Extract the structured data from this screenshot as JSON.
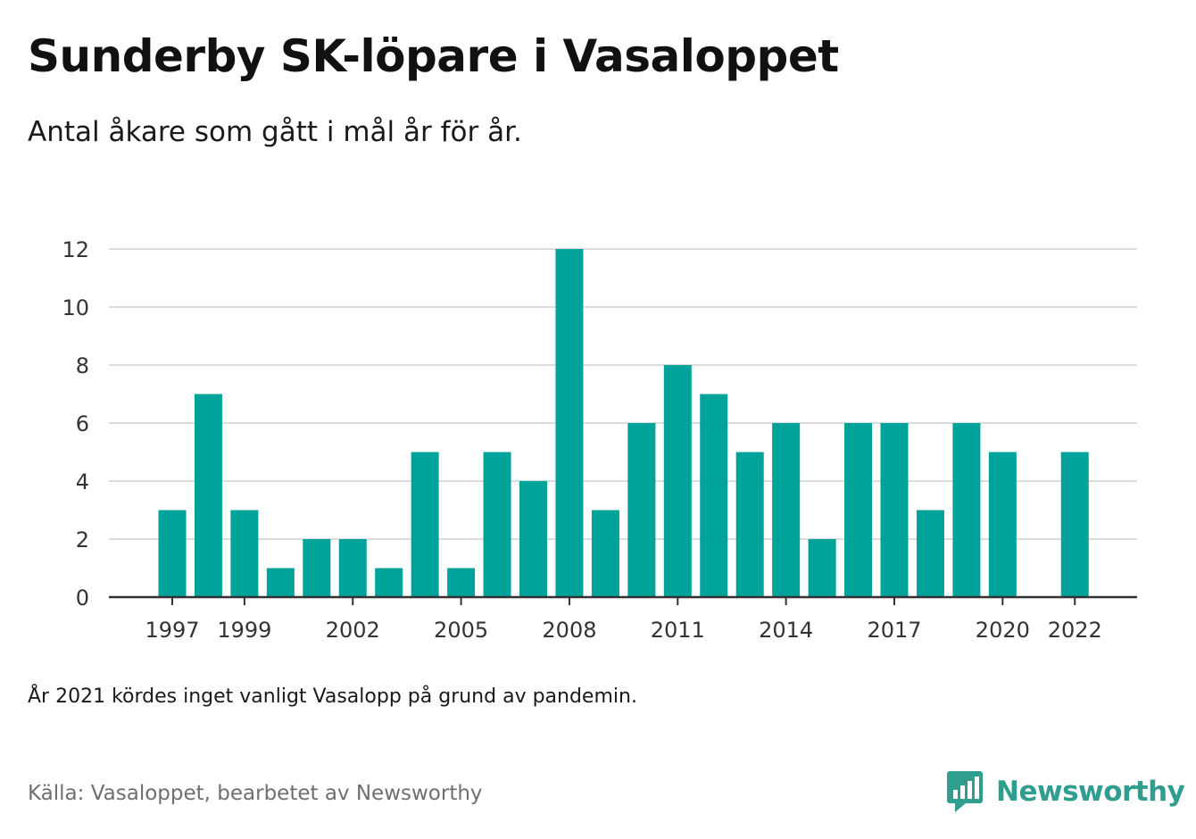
{
  "header": {
    "title": "Sunderby SK-löpare i Vasaloppet",
    "subtitle": "Antal åkare som gått i mål år för år."
  },
  "footer": {
    "note": "År 2021 kördes inget vanligt Vasalopp på grund av pandemin.",
    "source": "Källa: Vasaloppet, bearbetet av Newsworthy",
    "brand": "Newsworthy",
    "brand_icon": "newsworthy-logo-icon"
  },
  "colors": {
    "bar": "#00a39a",
    "grid": "#dcdcdc",
    "axis": "#333333",
    "brand": "#2f9e8f"
  },
  "chart_data": {
    "type": "bar",
    "title": "Sunderby SK-löpare i Vasaloppet",
    "subtitle": "Antal åkare som gått i mål år för år.",
    "xlabel": "",
    "ylabel": "",
    "categories": [
      1997,
      1998,
      1999,
      2000,
      2001,
      2002,
      2003,
      2004,
      2005,
      2006,
      2007,
      2008,
      2009,
      2010,
      2011,
      2012,
      2013,
      2014,
      2015,
      2016,
      2017,
      2018,
      2019,
      2020,
      2021,
      2022
    ],
    "values": [
      3,
      7,
      3,
      1,
      2,
      2,
      1,
      5,
      1,
      5,
      4,
      12,
      3,
      6,
      8,
      7,
      5,
      6,
      2,
      6,
      6,
      3,
      6,
      5,
      null,
      5
    ],
    "x_tick_labels": [
      "1997",
      "1999",
      "2002",
      "2005",
      "2008",
      "2011",
      "2014",
      "2017",
      "2020",
      "2022"
    ],
    "y_ticks": [
      0,
      2,
      4,
      6,
      8,
      10,
      12
    ],
    "ylim": [
      0,
      12
    ],
    "grid": true,
    "legend": "none"
  }
}
